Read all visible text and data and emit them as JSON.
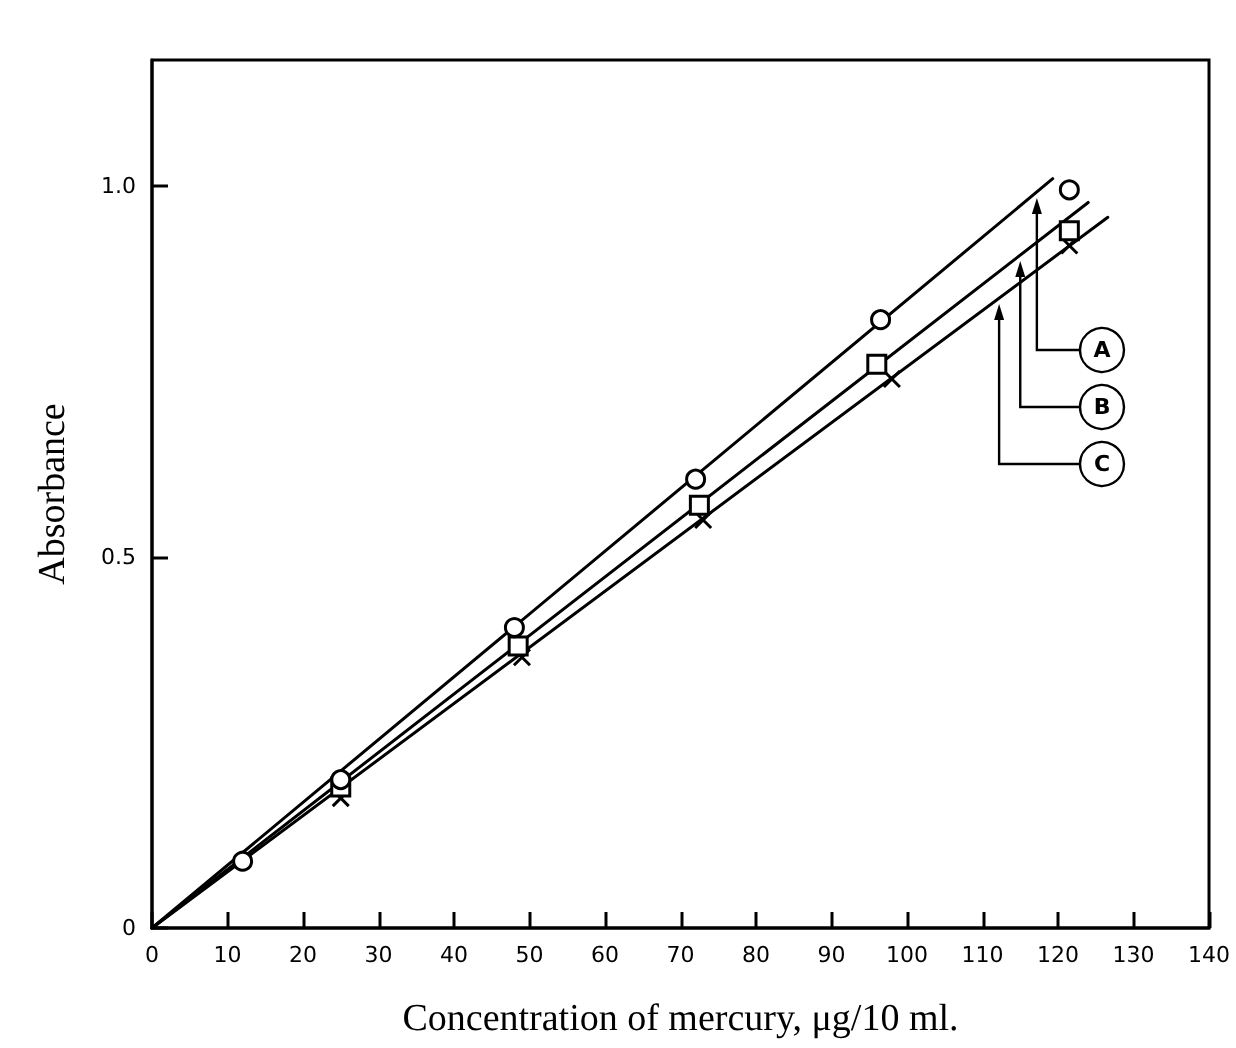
{
  "chart_data": {
    "type": "scatter",
    "xlabel": "Concentration of mercury, μg/10 ml.",
    "ylabel": "Absorbance",
    "xlim": [
      0,
      140
    ],
    "xticks": [
      0,
      10,
      20,
      30,
      40,
      50,
      60,
      70,
      80,
      90,
      100,
      110,
      120,
      130,
      140
    ],
    "ylim": [
      0,
      1.17
    ],
    "legend": "right",
    "yticks": [
      0,
      {
        "value": 0.5,
        "label": "0.5"
      },
      {
        "value": 1,
        "label": "1.0"
      }
    ],
    "series": [
      {
        "marker": "circle",
        "color": "#000000",
        "x": [
          12,
          25,
          48,
          72,
          96.5,
          121.5
        ],
        "values": [
          0.09,
          0.2,
          0.405,
          0.605,
          0.82,
          0.995
        ]
      },
      {
        "marker": "square",
        "color": "#000000",
        "x": [
          25,
          48.5,
          72.5,
          96,
          121.5
        ],
        "values": [
          0.19,
          0.38,
          0.57,
          0.76,
          0.94
        ]
      },
      {
        "marker": "cross",
        "color": "#000000",
        "x": [
          25,
          49,
          73,
          98,
          121.5
        ],
        "values": [
          0.175,
          0.365,
          0.55,
          0.74,
          0.92
        ]
      },
      {
        "type": "line",
        "name": "A",
        "marker": "none",
        "color": "#000000",
        "x": [
          0,
          119.3
        ],
        "values": [
          0,
          1.01
        ]
      },
      {
        "type": "line",
        "name": "B",
        "marker": "none",
        "color": "#000000",
        "x": [
          0,
          124
        ],
        "values": [
          0,
          0.978
        ]
      },
      {
        "type": "line",
        "name": "C",
        "marker": "none",
        "color": "#000000",
        "x": [
          0,
          126.6
        ],
        "values": [
          0,
          0.958
        ]
      }
    ]
  }
}
